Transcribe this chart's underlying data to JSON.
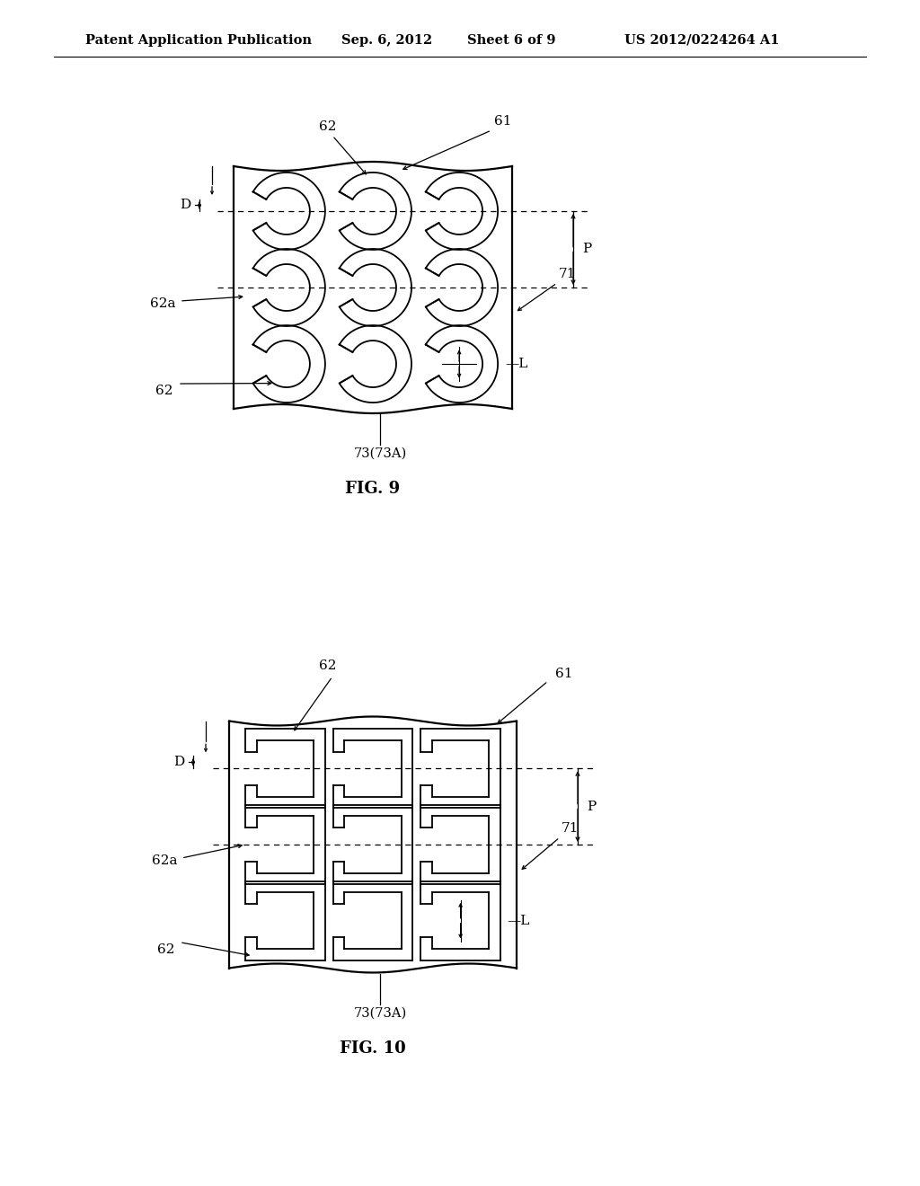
{
  "background_color": "#ffffff",
  "header_left": "Patent Application Publication",
  "header_date": "Sep. 6, 2012",
  "header_sheet": "Sheet 6 of 9",
  "header_patent": "US 2012/0224264 A1",
  "fig9_label": "FIG. 9",
  "fig10_label": "FIG. 10"
}
